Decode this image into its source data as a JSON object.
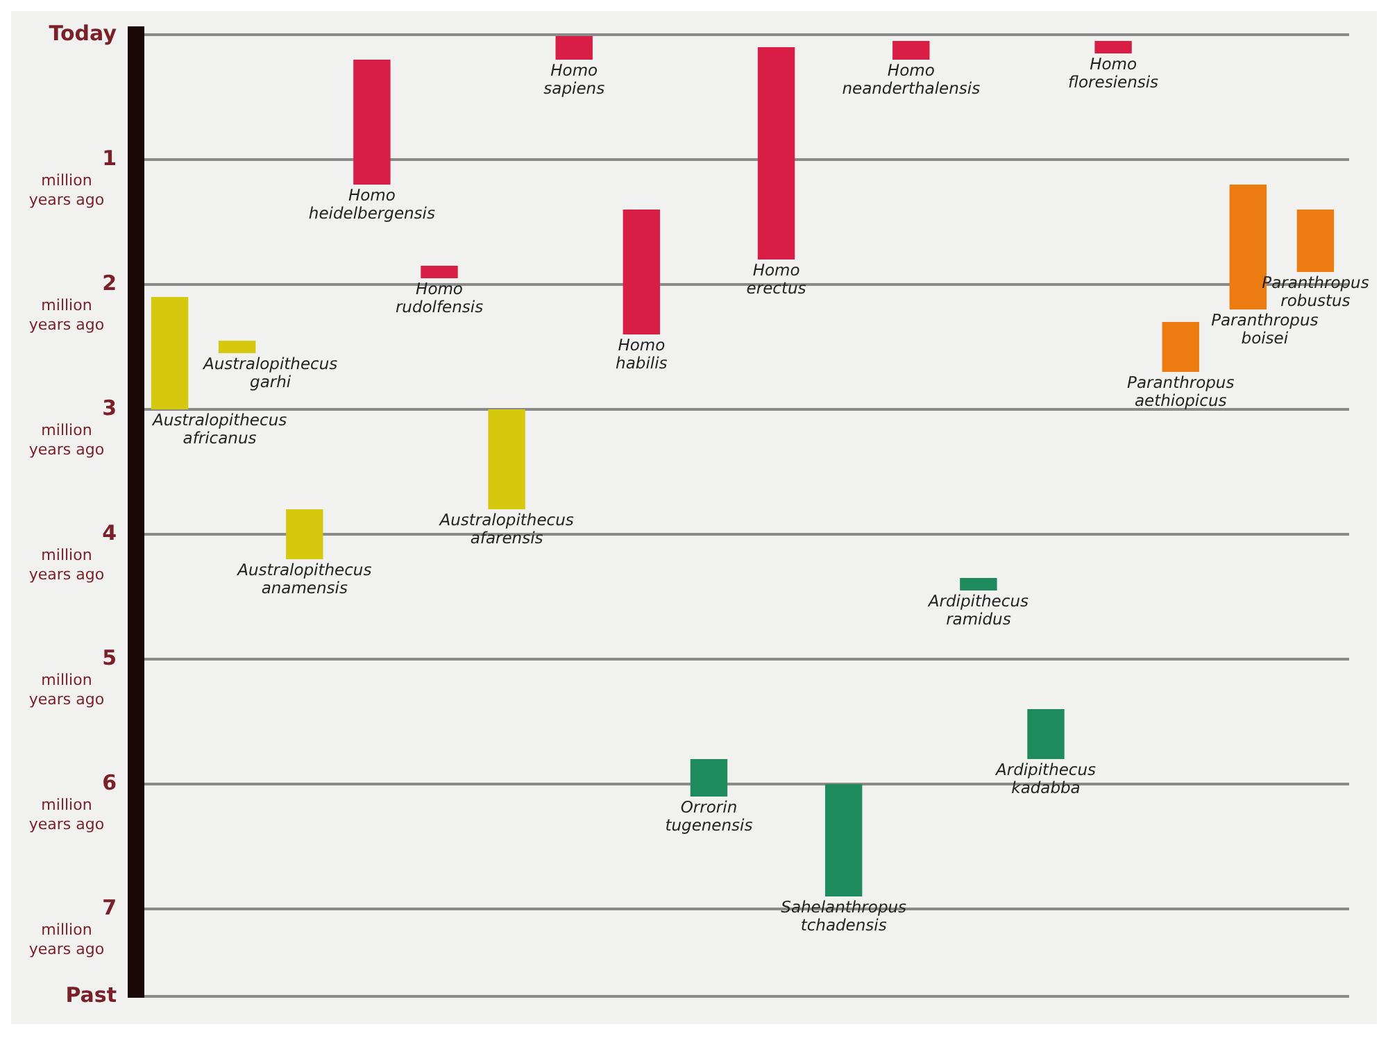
{
  "chart_data": {
    "type": "bar",
    "categories": [
      null,
      null,
      null,
      null,
      null,
      null,
      null,
      null,
      null,
      null,
      null,
      null,
      null,
      null,
      null,
      null,
      null,
      null
    ],
    "series": [
      {
        "name": "Australopithecus africanus",
        "color": "#d6c80e",
        "base": [
          2.1,
          null,
          null,
          null,
          null,
          null,
          null,
          null,
          null,
          null,
          null,
          null,
          null,
          null,
          null,
          null,
          null,
          null
        ],
        "values": [
          0.9,
          null,
          null,
          null,
          null,
          null,
          null,
          null,
          null,
          null,
          null,
          null,
          null,
          null,
          null,
          null,
          null,
          null
        ]
      },
      {
        "name": "Australopithecus garhi",
        "color": "#d6c80e",
        "base": [
          null,
          2.45,
          null,
          null,
          null,
          null,
          null,
          null,
          null,
          null,
          null,
          null,
          null,
          null,
          null,
          null,
          null,
          null
        ],
        "values": [
          null,
          0.1,
          null,
          null,
          null,
          null,
          null,
          null,
          null,
          null,
          null,
          null,
          null,
          null,
          null,
          null,
          null,
          null
        ]
      },
      {
        "name": "Australopithecus anamensis",
        "color": "#d6c80e",
        "base": [
          null,
          null,
          3.8,
          null,
          null,
          null,
          null,
          null,
          null,
          null,
          null,
          null,
          null,
          null,
          null,
          null,
          null,
          null
        ],
        "values": [
          null,
          null,
          0.4,
          null,
          null,
          null,
          null,
          null,
          null,
          null,
          null,
          null,
          null,
          null,
          null,
          null,
          null,
          null
        ]
      },
      {
        "name": "Homo heidelbergensis",
        "color": "#d81e45",
        "base": [
          null,
          null,
          null,
          0.2,
          null,
          null,
          null,
          null,
          null,
          null,
          null,
          null,
          null,
          null,
          null,
          null,
          null,
          null
        ],
        "values": [
          null,
          null,
          null,
          1.0,
          null,
          null,
          null,
          null,
          null,
          null,
          null,
          null,
          null,
          null,
          null,
          null,
          null,
          null
        ]
      },
      {
        "name": "Homo rudolfensis",
        "color": "#d81e45",
        "base": [
          null,
          null,
          null,
          null,
          1.85,
          null,
          null,
          null,
          null,
          null,
          null,
          null,
          null,
          null,
          null,
          null,
          null,
          null
        ],
        "values": [
          null,
          null,
          null,
          null,
          0.1,
          null,
          null,
          null,
          null,
          null,
          null,
          null,
          null,
          null,
          null,
          null,
          null,
          null
        ]
      },
      {
        "name": "Australopithecus afarensis",
        "color": "#d6c80e",
        "base": [
          null,
          null,
          null,
          null,
          null,
          3.0,
          null,
          null,
          null,
          null,
          null,
          null,
          null,
          null,
          null,
          null,
          null,
          null
        ],
        "values": [
          null,
          null,
          null,
          null,
          null,
          0.8,
          null,
          null,
          null,
          null,
          null,
          null,
          null,
          null,
          null,
          null,
          null,
          null
        ]
      },
      {
        "name": "Homo sapiens",
        "color": "#d81e45",
        "base": [
          null,
          null,
          null,
          null,
          null,
          null,
          0,
          null,
          null,
          null,
          null,
          null,
          null,
          null,
          null,
          null,
          null,
          null
        ],
        "values": [
          null,
          null,
          null,
          null,
          null,
          null,
          0.2,
          null,
          null,
          null,
          null,
          null,
          null,
          null,
          null,
          null,
          null,
          null
        ]
      },
      {
        "name": "Homo habilis",
        "color": "#d81e45",
        "base": [
          null,
          null,
          null,
          null,
          null,
          null,
          null,
          1.4,
          null,
          null,
          null,
          null,
          null,
          null,
          null,
          null,
          null,
          null
        ],
        "values": [
          null,
          null,
          null,
          null,
          null,
          null,
          null,
          1.0,
          null,
          null,
          null,
          null,
          null,
          null,
          null,
          null,
          null,
          null
        ]
      },
      {
        "name": "Orrorin tugenensis",
        "color": "#1e8a5e",
        "base": [
          null,
          null,
          null,
          null,
          null,
          null,
          null,
          null,
          5.8,
          null,
          null,
          null,
          null,
          null,
          null,
          null,
          null,
          null
        ],
        "values": [
          null,
          null,
          null,
          null,
          null,
          null,
          null,
          null,
          0.3,
          null,
          null,
          null,
          null,
          null,
          null,
          null,
          null,
          null
        ]
      },
      {
        "name": "Homo erectus",
        "color": "#d81e45",
        "base": [
          null,
          null,
          null,
          null,
          null,
          null,
          null,
          null,
          null,
          0.1,
          null,
          null,
          null,
          null,
          null,
          null,
          null,
          null
        ],
        "values": [
          null,
          null,
          null,
          null,
          null,
          null,
          null,
          null,
          null,
          1.7,
          null,
          null,
          null,
          null,
          null,
          null,
          null,
          null
        ]
      },
      {
        "name": "Sahelanthropus tchadensis",
        "color": "#1e8a5e",
        "base": [
          null,
          null,
          null,
          null,
          null,
          null,
          null,
          null,
          null,
          null,
          6.0,
          null,
          null,
          null,
          null,
          null,
          null,
          null
        ],
        "values": [
          null,
          null,
          null,
          null,
          null,
          null,
          null,
          null,
          null,
          null,
          0.9,
          null,
          null,
          null,
          null,
          null,
          null,
          null
        ]
      },
      {
        "name": "Homo neanderthalensis",
        "color": "#d81e45",
        "base": [
          null,
          null,
          null,
          null,
          null,
          null,
          null,
          null,
          null,
          null,
          null,
          0.05,
          null,
          null,
          null,
          null,
          null,
          null
        ],
        "values": [
          null,
          null,
          null,
          null,
          null,
          null,
          null,
          null,
          null,
          null,
          null,
          0.15,
          null,
          null,
          null,
          null,
          null,
          null
        ]
      },
      {
        "name": "Ardipithecus ramidus",
        "color": "#1e8a5e",
        "base": [
          null,
          null,
          null,
          null,
          null,
          null,
          null,
          null,
          null,
          null,
          null,
          null,
          4.35,
          null,
          null,
          null,
          null,
          null
        ],
        "values": [
          null,
          null,
          null,
          null,
          null,
          null,
          null,
          null,
          null,
          null,
          null,
          null,
          0.1,
          null,
          null,
          null,
          null,
          null
        ]
      },
      {
        "name": "Ardipithecus kadabba",
        "color": "#1e8a5e",
        "base": [
          null,
          null,
          null,
          null,
          null,
          null,
          null,
          null,
          null,
          null,
          null,
          null,
          null,
          5.4,
          null,
          null,
          null,
          null
        ],
        "values": [
          null,
          null,
          null,
          null,
          null,
          null,
          null,
          null,
          null,
          null,
          null,
          null,
          null,
          0.4,
          null,
          null,
          null,
          null
        ]
      },
      {
        "name": "Homo floresiensis",
        "color": "#d81e45",
        "base": [
          null,
          null,
          null,
          null,
          null,
          null,
          null,
          null,
          null,
          null,
          null,
          null,
          null,
          null,
          0.05,
          null,
          null,
          null
        ],
        "values": [
          null,
          null,
          null,
          null,
          null,
          null,
          null,
          null,
          null,
          null,
          null,
          null,
          null,
          null,
          0.1,
          null,
          null,
          null
        ]
      },
      {
        "name": "Paranthropus aethiopicus",
        "color": "#ec7c12",
        "base": [
          null,
          null,
          null,
          null,
          null,
          null,
          null,
          null,
          null,
          null,
          null,
          null,
          null,
          null,
          null,
          2.3,
          null,
          null
        ],
        "values": [
          null,
          null,
          null,
          null,
          null,
          null,
          null,
          null,
          null,
          null,
          null,
          null,
          null,
          null,
          null,
          0.4,
          null,
          null
        ]
      },
      {
        "name": "Paranthropus boisei",
        "color": "#ec7c12",
        "base": [
          null,
          null,
          null,
          null,
          null,
          null,
          null,
          null,
          null,
          null,
          null,
          null,
          null,
          null,
          null,
          null,
          1.2,
          null
        ],
        "values": [
          null,
          null,
          null,
          null,
          null,
          null,
          null,
          null,
          null,
          null,
          null,
          null,
          null,
          null,
          null,
          null,
          1.0,
          null
        ]
      },
      {
        "name": "Paranthropus robustus",
        "color": "#ec7c12",
        "base": [
          null,
          null,
          null,
          null,
          null,
          null,
          null,
          null,
          null,
          null,
          null,
          null,
          null,
          null,
          null,
          null,
          null,
          1.4
        ],
        "values": [
          null,
          null,
          null,
          null,
          null,
          null,
          null,
          null,
          null,
          null,
          null,
          null,
          null,
          null,
          null,
          null,
          null,
          0.5
        ]
      }
    ],
    "ylim": [
      7.7,
      0
    ],
    "yticks": [
      {
        "value": 0,
        "label": "Today"
      },
      1,
      2,
      3,
      4,
      5,
      6,
      7,
      {
        "value": 7.7,
        "label": "Past"
      }
    ],
    "annotations": [
      "million years ago",
      "million years ago",
      "million years ago",
      "million years ago",
      "million years ago",
      "million years ago",
      "million years ago"
    ],
    "grid": "y",
    "tick_labels": "y",
    "legend": false
  }
}
